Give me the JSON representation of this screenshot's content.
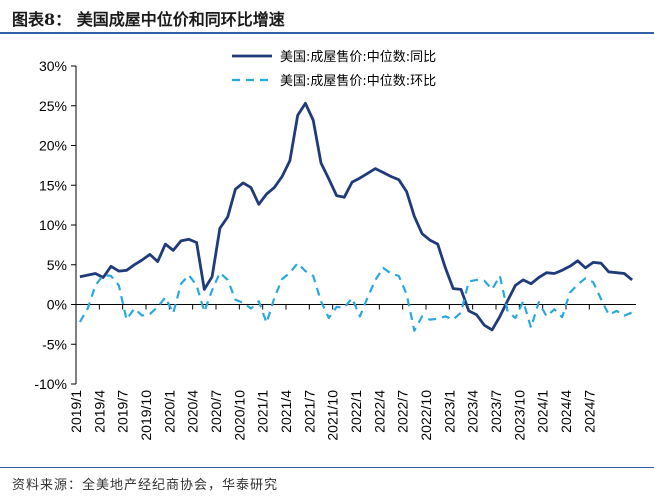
{
  "header": {
    "title": "图表8： 美国成屋中位价和同环比增速"
  },
  "footer": {
    "source": "资料来源：全美地产经纪商协会，华泰研究"
  },
  "chart_data": {
    "type": "line",
    "ylim": [
      -10,
      30
    ],
    "yticks": [
      "30%",
      "25%",
      "20%",
      "15%",
      "10%",
      "5%",
      "0%",
      "-5%",
      "-10%"
    ],
    "ytick_values": [
      30,
      25,
      20,
      15,
      10,
      5,
      0,
      -5,
      -10
    ],
    "xtick_labels": [
      "2019/1",
      "2019/4",
      "2019/7",
      "2019/10",
      "2020/1",
      "2020/4",
      "2020/7",
      "2020/10",
      "2021/1",
      "2021/4",
      "2021/7",
      "2021/10",
      "2022/1",
      "2022/4",
      "2022/7",
      "2022/10",
      "2023/1",
      "2023/4",
      "2023/7",
      "2023/10",
      "2024/1",
      "2024/4",
      "2024/7"
    ],
    "legend_position": "top-center",
    "series": [
      {
        "name": "美国:成屋售价:中位数:同比",
        "color": "#1f3b7a",
        "style": "solid",
        "values": [
          3.5,
          3.7,
          3.9,
          3.4,
          4.8,
          4.2,
          4.3,
          5.0,
          5.6,
          6.3,
          5.4,
          7.6,
          6.8,
          8.0,
          8.2,
          7.8,
          1.9,
          3.5,
          9.6,
          11.0,
          14.5,
          15.3,
          14.7,
          12.6,
          13.9,
          14.7,
          16.1,
          18.1,
          23.8,
          25.3,
          23.2,
          17.8,
          15.8,
          13.7,
          13.5,
          15.4,
          15.9,
          16.5,
          17.1,
          16.6,
          16.1,
          15.7,
          14.2,
          11.1,
          8.9,
          8.1,
          7.6,
          4.6,
          2.0,
          1.9,
          -0.8,
          -1.3,
          -2.6,
          -3.2,
          -1.5,
          0.5,
          2.4,
          3.1,
          2.6,
          3.4,
          4.0,
          3.9,
          4.3,
          4.8,
          5.5,
          4.6,
          5.3,
          5.2,
          4.1,
          4.0,
          3.9,
          3.1
        ]
      },
      {
        "name": "美国:成屋售价:中位数:环比",
        "color": "#29a8e0",
        "style": "dashed",
        "values": [
          -2.2,
          -0.5,
          2.4,
          3.7,
          3.6,
          2.4,
          -1.9,
          -0.5,
          -1.4,
          -1.2,
          -0.3,
          0.9,
          -1.1,
          2.6,
          3.7,
          2.4,
          -0.9,
          1.8,
          4.0,
          3.1,
          0.6,
          0.2,
          -0.5,
          0.4,
          -2.3,
          0.8,
          3.2,
          4.0,
          5.2,
          4.2,
          3.6,
          0.4,
          -1.7,
          -0.3,
          -0.4,
          0.8,
          -1.5,
          0.9,
          3.1,
          4.6,
          3.9,
          3.6,
          1.3,
          -3.3,
          -1.5,
          -1.9,
          -1.8,
          -1.5,
          -1.9,
          -1.0,
          2.9,
          3.1,
          3.0,
          1.9,
          3.6,
          -0.9,
          -1.7,
          0.4,
          -2.9,
          0.3,
          -1.5,
          -0.6,
          -1.6,
          1.5,
          2.5,
          3.3,
          2.8,
          0.7,
          -1.3,
          -0.8,
          -1.4,
          -1.0
        ]
      }
    ]
  }
}
